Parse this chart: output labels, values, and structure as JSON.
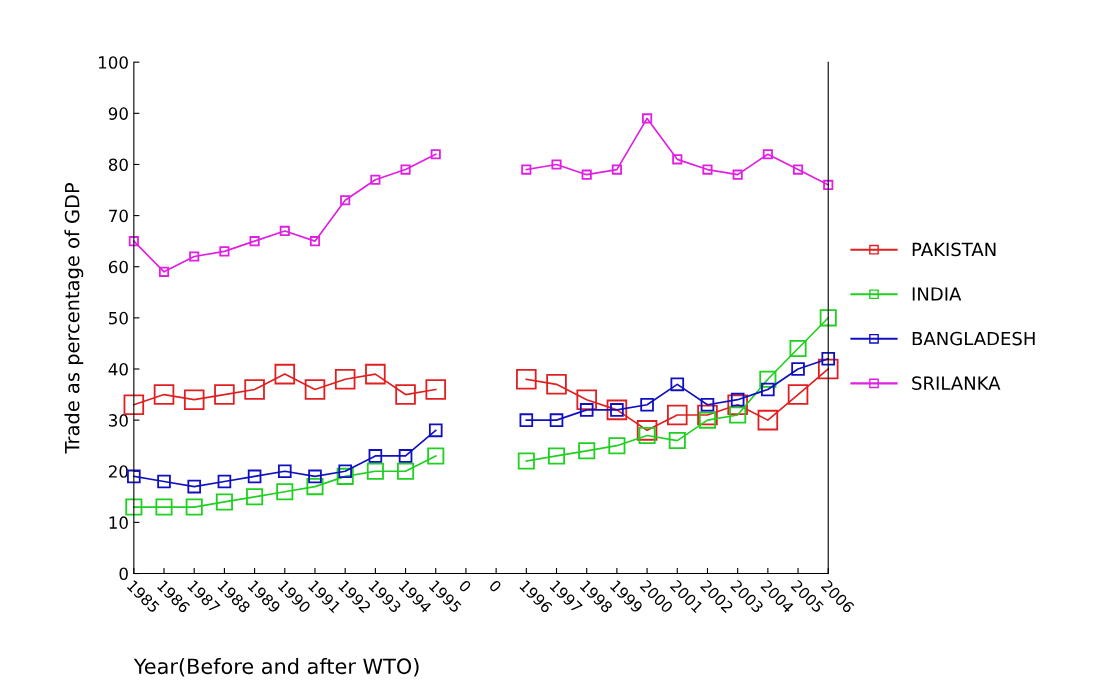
{
  "chart_data": {
    "type": "line",
    "xlabel": "Year(Before and after WTO)",
    "ylabel": "Trade as percentage of GDP",
    "categories": [
      "1985",
      "1986",
      "1987",
      "1988",
      "1989",
      "1990",
      "1991",
      "1992",
      "1993",
      "1994",
      "1995",
      "0",
      "0",
      "1996",
      "1997",
      "1998",
      "1999",
      "2000",
      "2001",
      "2002",
      "2003",
      "2004",
      "2005",
      "2006"
    ],
    "series": [
      {
        "name": "PAKISTAN",
        "color": "#e02020",
        "values": [
          33,
          35,
          34,
          35,
          36,
          39,
          36,
          38,
          39,
          35,
          36,
          null,
          null,
          38,
          37,
          34,
          32,
          28,
          31,
          31,
          33,
          30,
          35,
          40
        ]
      },
      {
        "name": "INDIA",
        "color": "#20d020",
        "values": [
          13,
          13,
          13,
          14,
          15,
          16,
          17,
          19,
          20,
          20,
          23,
          null,
          null,
          22,
          23,
          24,
          25,
          27,
          26,
          30,
          31,
          38,
          44,
          50
        ]
      },
      {
        "name": "BANGLADESH",
        "color": "#1010c0",
        "values": [
          19,
          18,
          17,
          18,
          19,
          20,
          19,
          20,
          23,
          23,
          28,
          null,
          null,
          30,
          30,
          32,
          32,
          33,
          37,
          33,
          34,
          36,
          40,
          42
        ]
      },
      {
        "name": "SRILANKA",
        "color": "#e020e0",
        "values": [
          65,
          59,
          62,
          63,
          65,
          67,
          65,
          73,
          77,
          79,
          82,
          null,
          null,
          79,
          80,
          78,
          79,
          89,
          81,
          79,
          78,
          82,
          79,
          76
        ]
      }
    ],
    "ylim": [
      0,
      100
    ],
    "yticks": [
      0,
      10,
      20,
      30,
      40,
      50,
      60,
      70,
      80,
      90,
      100
    ],
    "grid": false,
    "legend": "right",
    "marker": "square",
    "line_style": "solid"
  }
}
